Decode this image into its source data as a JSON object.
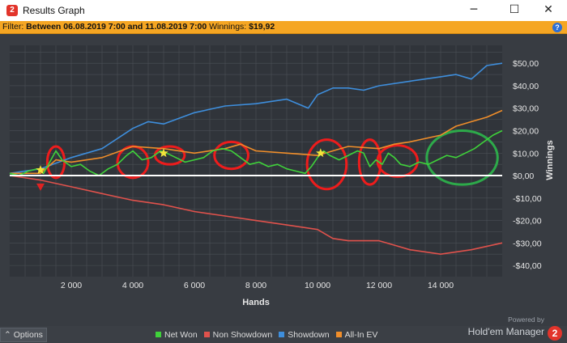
{
  "window": {
    "title": "Results Graph",
    "minimize_glyph": "─",
    "maximize_glyph": "☐",
    "close_glyph": "✕"
  },
  "filter": {
    "prefix": "Filter:",
    "range": "Between 06.08.2019 7:00 and 11.08.2019 7:00",
    "winnings_label": "Winnings:",
    "winnings_value": "$19,92",
    "help_glyph": "?"
  },
  "chart_data": {
    "type": "line",
    "xlabel": "Hands",
    "ylabel": "Winnings",
    "xlim": [
      0,
      16000
    ],
    "ylim": [
      -45,
      58
    ],
    "x_ticks": [
      2000,
      4000,
      6000,
      8000,
      10000,
      12000,
      14000
    ],
    "x_tick_labels": [
      "2 000",
      "4 000",
      "6 000",
      "8 000",
      "10 000",
      "12 000",
      "14 000"
    ],
    "y_ticks": [
      50,
      40,
      30,
      20,
      10,
      0,
      -10,
      -20,
      -30,
      -40
    ],
    "y_tick_labels": [
      "$50,00",
      "$40,00",
      "$30,00",
      "$20,00",
      "$10,00",
      "$0,00",
      "-$10,00",
      "-$20,00",
      "-$30,00",
      "-$40,00"
    ],
    "grid": true,
    "legend_position": "bottom",
    "series": [
      {
        "name": "Net Won",
        "color": "#3fd23a",
        "x": [
          0,
          300,
          600,
          900,
          1100,
          1300,
          1500,
          1700,
          2000,
          2300,
          2600,
          2900,
          3200,
          3500,
          3800,
          4000,
          4300,
          4600,
          4900,
          5100,
          5400,
          5700,
          6000,
          6300,
          6600,
          6900,
          7200,
          7500,
          7800,
          8100,
          8400,
          8700,
          9000,
          9300,
          9600,
          9800,
          10000,
          10200,
          10400,
          10700,
          11000,
          11300,
          11500,
          11700,
          11900,
          12100,
          12300,
          12500,
          12700,
          13000,
          13300,
          13600,
          13900,
          14200,
          14500,
          14800,
          15100,
          15400,
          15700,
          16000
        ],
        "values": [
          1,
          0,
          2,
          3,
          1,
          6,
          11,
          7,
          4,
          5,
          2,
          0,
          3,
          5,
          9,
          11,
          7,
          8,
          11,
          10,
          8,
          6,
          7,
          8,
          11,
          12,
          11,
          8,
          5,
          6,
          4,
          5,
          3,
          2,
          1,
          4,
          8,
          11,
          9,
          7,
          9,
          11,
          10,
          4,
          7,
          5,
          10,
          8,
          5,
          4,
          6,
          5,
          7,
          9,
          8,
          10,
          12,
          15,
          18,
          20
        ]
      },
      {
        "name": "Non Showdown",
        "color": "#e0524c",
        "x": [
          0,
          1000,
          2000,
          3000,
          4000,
          5000,
          6000,
          7000,
          8000,
          9000,
          10000,
          10500,
          11000,
          12000,
          12500,
          13000,
          14000,
          15000,
          16000
        ],
        "values": [
          0,
          -2,
          -5,
          -8,
          -11,
          -13,
          -16,
          -18,
          -20,
          -22,
          -24,
          -28,
          -29,
          -29,
          -31,
          -33,
          -35,
          -33,
          -30
        ]
      },
      {
        "name": "Showdown",
        "color": "#3e8edc",
        "x": [
          0,
          1000,
          2000,
          3000,
          4000,
          4500,
          5000,
          6000,
          7000,
          8000,
          9000,
          9700,
          10000,
          10500,
          11000,
          11500,
          12000,
          13000,
          14000,
          14500,
          15000,
          15500,
          16000
        ],
        "values": [
          1,
          3,
          8,
          12,
          21,
          24,
          23,
          28,
          31,
          32,
          34,
          30,
          36,
          39,
          39,
          38,
          40,
          42,
          44,
          45,
          43,
          49,
          50
        ]
      },
      {
        "name": "All-In EV",
        "color": "#f08e2a",
        "x": [
          0,
          1000,
          1500,
          2000,
          3000,
          4000,
          5000,
          6000,
          7000,
          7500,
          8000,
          9000,
          10000,
          10500,
          11000,
          12000,
          12500,
          13000,
          14000,
          14500,
          15000,
          15500,
          16000
        ],
        "values": [
          1,
          1,
          7,
          6,
          8,
          13,
          12,
          10,
          12,
          14,
          11,
          10,
          9,
          11,
          13,
          12,
          14,
          15,
          18,
          22,
          24,
          26,
          29
        ]
      }
    ],
    "markers": [
      {
        "type": "star",
        "color": "#f2e43a",
        "x": 1000,
        "y": 2.5
      },
      {
        "type": "triangle-down",
        "color": "#e02222",
        "x": 1000,
        "y": -5
      },
      {
        "type": "star",
        "color": "#f2e43a",
        "x": 5000,
        "y": 10
      },
      {
        "type": "star",
        "color": "#f2e43a",
        "x": 10100,
        "y": 10
      }
    ],
    "annotations": [
      {
        "shape": "ellipse",
        "color": "#ee1c1c",
        "cx": 1500,
        "cy": 6,
        "rx": 280,
        "ry": 7
      },
      {
        "shape": "ellipse",
        "color": "#ee1c1c",
        "cx": 4000,
        "cy": 6,
        "rx": 500,
        "ry": 7
      },
      {
        "shape": "ellipse",
        "color": "#ee1c1c",
        "cx": 5200,
        "cy": 9,
        "rx": 480,
        "ry": 4
      },
      {
        "shape": "ellipse",
        "color": "#ee1c1c",
        "cx": 7200,
        "cy": 9,
        "rx": 550,
        "ry": 6
      },
      {
        "shape": "ellipse",
        "color": "#ee1c1c",
        "cx": 10300,
        "cy": 5,
        "rx": 640,
        "ry": 11
      },
      {
        "shape": "ellipse",
        "color": "#ee1c1c",
        "cx": 11700,
        "cy": 6,
        "rx": 350,
        "ry": 10
      },
      {
        "shape": "ellipse",
        "color": "#ee1c1c",
        "cx": 12600,
        "cy": 6.5,
        "rx": 650,
        "ry": 7
      },
      {
        "shape": "ellipse",
        "color": "#2daa4a",
        "cx": 14700,
        "cy": 8,
        "rx": 1150,
        "ry": 12
      }
    ]
  },
  "bottom": {
    "options_label": "Options",
    "options_glyph": "⌃",
    "powered_by": "Powered by",
    "product": "Hold'em Manager",
    "logo_text": "2"
  },
  "colors": {
    "background": "#383c42",
    "plot_bg": "#30343a",
    "grid": "#4a4f56",
    "filter_bar": "#f5a623",
    "zero_line": "#ffffff"
  }
}
